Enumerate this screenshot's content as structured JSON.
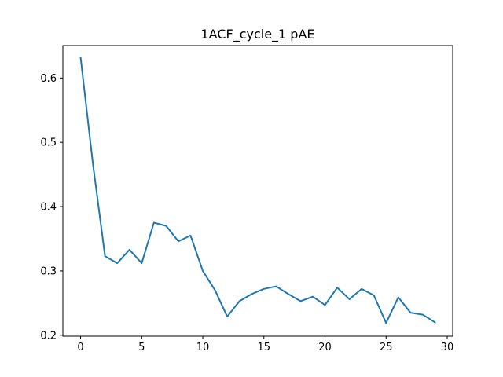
{
  "chart_data": {
    "type": "line",
    "title": "1ACF_cycle_1 pAE",
    "xlabel": "",
    "ylabel": "",
    "xlim": [
      -1.45,
      30.45
    ],
    "ylim": [
      0.1985,
      0.6505
    ],
    "xticks": [
      0,
      5,
      10,
      15,
      20,
      25,
      30
    ],
    "yticks": [
      0.2,
      0.3,
      0.4,
      0.5,
      0.6
    ],
    "xtick_labels": [
      "0",
      "5",
      "10",
      "15",
      "20",
      "25",
      "30"
    ],
    "ytick_labels": [
      "0.2",
      "0.3",
      "0.4",
      "0.5",
      "0.6"
    ],
    "grid": false,
    "line_color": "#1f77b4",
    "series": [
      {
        "x": [
          0,
          1,
          2,
          3,
          4,
          5,
          6,
          7,
          8,
          9,
          10,
          11,
          12,
          13,
          14,
          15,
          16,
          17,
          18,
          19,
          20,
          21,
          22,
          23,
          24,
          25,
          26,
          27,
          28,
          29
        ],
        "values": [
          0.632,
          0.468,
          0.323,
          0.312,
          0.333,
          0.312,
          0.375,
          0.37,
          0.346,
          0.355,
          0.3,
          0.27,
          0.229,
          0.253,
          0.264,
          0.272,
          0.276,
          0.264,
          0.253,
          0.26,
          0.247,
          0.274,
          0.256,
          0.272,
          0.262,
          0.219,
          0.259,
          0.235,
          0.232,
          0.22
        ]
      }
    ]
  }
}
